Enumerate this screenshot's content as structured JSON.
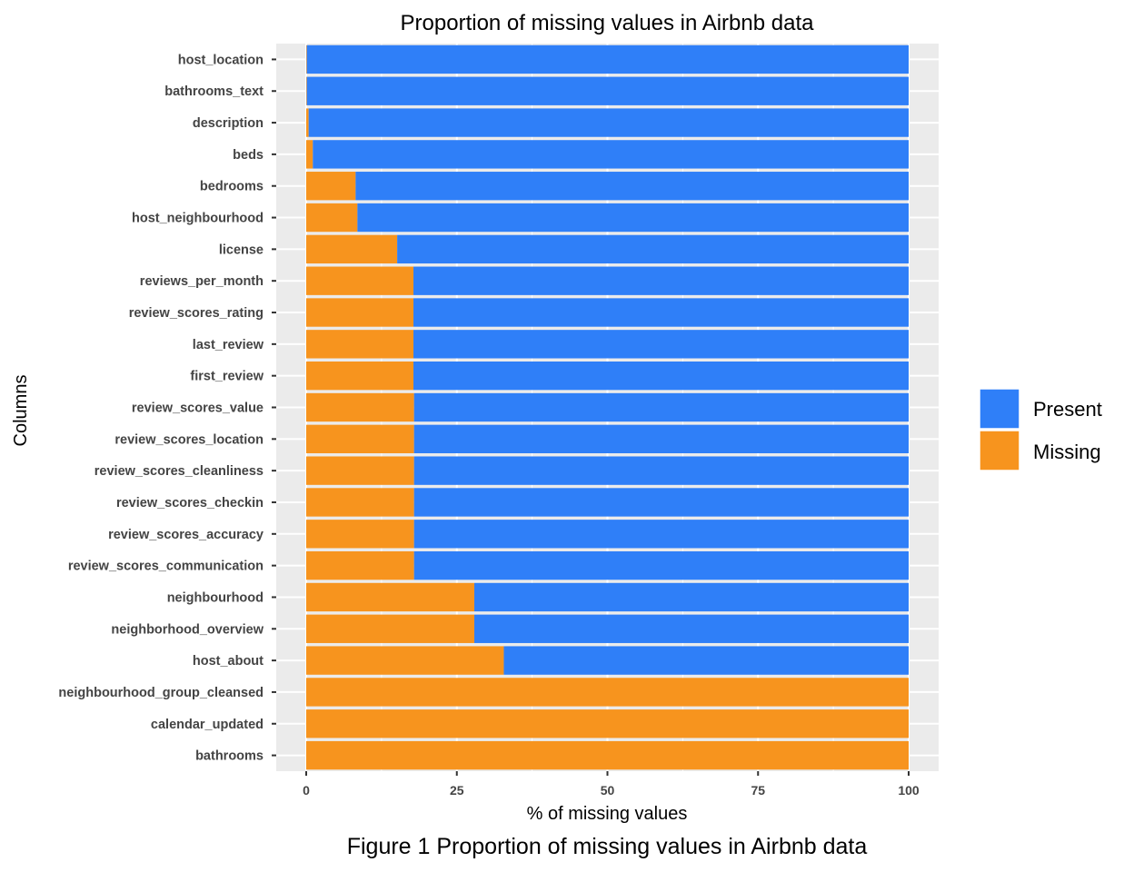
{
  "colors": {
    "present": "#2f7ff8",
    "missing": "#f7941e",
    "panel": "#ebebeb",
    "grid": "#ffffff"
  },
  "chart_data": {
    "type": "bar",
    "orientation": "horizontal",
    "stacked": true,
    "title": "Proportion of missing values in Airbnb data",
    "caption": "Figure 1 Proportion of missing values in Airbnb data",
    "xlabel": "% of missing values",
    "ylabel": "Columns",
    "xlim": [
      0,
      100
    ],
    "xticks": [
      0,
      25,
      50,
      75,
      100
    ],
    "legend": {
      "position": "right",
      "entries": [
        "Present",
        "Missing"
      ]
    },
    "categories": [
      "host_location",
      "bathrooms_text",
      "description",
      "beds",
      "bedrooms",
      "host_neighbourhood",
      "license",
      "reviews_per_month",
      "review_scores_rating",
      "last_review",
      "first_review",
      "review_scores_value",
      "review_scores_location",
      "review_scores_cleanliness",
      "review_scores_checkin",
      "review_scores_accuracy",
      "review_scores_communication",
      "neighbourhood",
      "neighborhood_overview",
      "host_about",
      "neighbourhood_group_cleansed",
      "calendar_updated",
      "bathrooms"
    ],
    "series": [
      {
        "name": "Missing",
        "values": [
          0.1,
          0.1,
          0.4,
          1.1,
          8.2,
          8.5,
          15.1,
          17.8,
          17.8,
          17.8,
          17.8,
          17.9,
          17.9,
          17.9,
          17.9,
          17.9,
          17.9,
          27.9,
          27.9,
          32.8,
          100,
          100,
          100
        ]
      },
      {
        "name": "Present",
        "values": [
          99.9,
          99.9,
          99.6,
          98.9,
          91.8,
          91.5,
          84.9,
          82.2,
          82.2,
          82.2,
          82.2,
          82.1,
          82.1,
          82.1,
          82.1,
          82.1,
          82.1,
          72.1,
          72.1,
          67.2,
          0,
          0,
          0
        ]
      }
    ]
  }
}
